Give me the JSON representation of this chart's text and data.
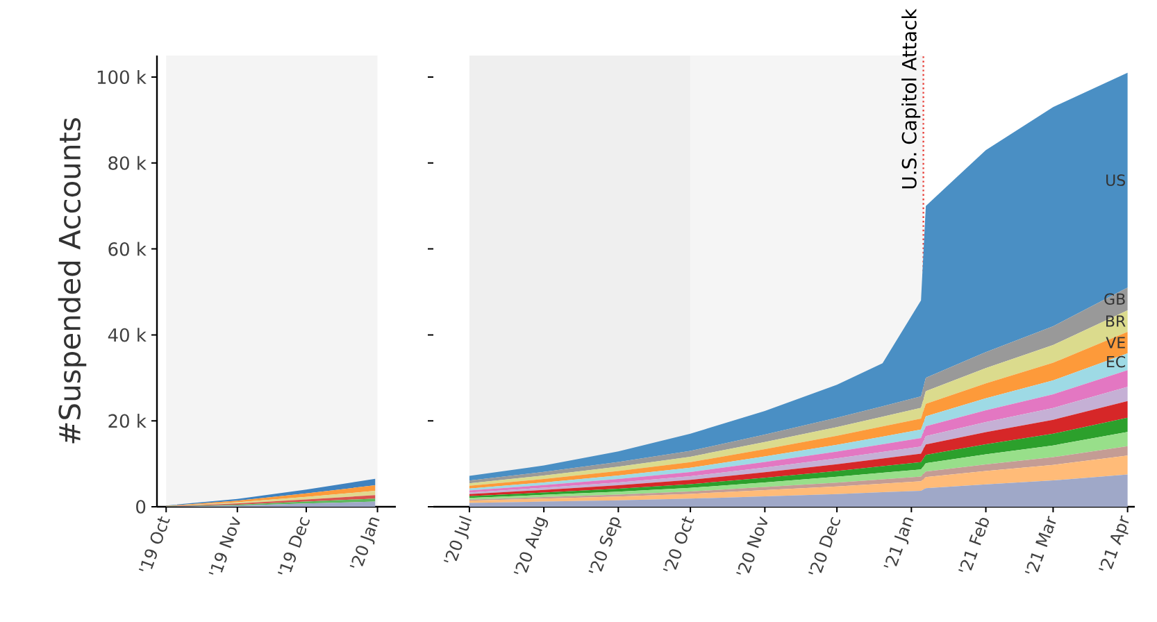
{
  "chart_data": [
    {
      "type": "area",
      "stacked": true,
      "ylabel": "#Suspended Accounts",
      "x": [
        "2019-10-01",
        "2019-11-01",
        "2019-12-01",
        "2019-12-31"
      ],
      "xlim": [
        "2019-09-27",
        "2020-01-09"
      ],
      "ylim": [
        0,
        105000
      ],
      "xticks": [
        {
          "value": "2019-10-01",
          "label": "'19 Oct"
        },
        {
          "value": "2019-11-01",
          "label": "'19 Nov"
        },
        {
          "value": "2019-12-01",
          "label": "'19 Dec"
        },
        {
          "value": "2020-01-01",
          "label": "'20 Jan"
        }
      ],
      "yticks": [
        0,
        {
          "value": 20000,
          "label": "20 k"
        },
        {
          "value": 40000,
          "label": "40 k"
        },
        {
          "value": 60000,
          "label": "60 k"
        },
        {
          "value": 80000,
          "label": "80 k"
        },
        {
          "value": 100000,
          "label": "100 k"
        }
      ],
      "bands": [
        {
          "axis": "x",
          "from": "2019-10-01",
          "to": "2020-01-01",
          "color": "#f4f4f4"
        }
      ],
      "series": [
        {
          "color": "#9fa8c8",
          "values": [
            50,
            300,
            750,
            1200
          ]
        },
        {
          "color": "#5cb85c",
          "values": [
            30,
            200,
            450,
            700
          ]
        },
        {
          "color": "#d9534f",
          "values": [
            30,
            250,
            500,
            800
          ]
        },
        {
          "color": "#e0d890",
          "values": [
            40,
            300,
            600,
            1000
          ]
        },
        {
          "color": "#fd9a3a",
          "values": [
            50,
            350,
            800,
            1300
          ]
        },
        {
          "color": "#3f82bf",
          "values": [
            100,
            400,
            900,
            1500
          ]
        }
      ]
    },
    {
      "type": "area",
      "stacked": true,
      "tick_labels": "x",
      "x": [
        "2020-07-01",
        "2020-08-01",
        "2020-09-01",
        "2020-10-01",
        "2020-11-01",
        "2020-12-01",
        "2020-12-20",
        "2021-01-05",
        "2021-01-07",
        "2021-02-01",
        "2021-03-01",
        "2021-04-01"
      ],
      "xlim": [
        "2020-06-16",
        "2021-04-04"
      ],
      "ylim": [
        0,
        105000
      ],
      "yticks": [
        {
          "value": 0,
          "label": null
        },
        {
          "value": 20000,
          "label": null
        },
        {
          "value": 40000,
          "label": null
        },
        {
          "value": 60000,
          "label": null
        },
        {
          "value": 80000,
          "label": null
        },
        {
          "value": 100000,
          "label": null
        }
      ],
      "xticks": [
        {
          "value": "2020-07-01",
          "label": "'20 Jul"
        },
        {
          "value": "2020-08-01",
          "label": "'20 Aug"
        },
        {
          "value": "2020-09-01",
          "label": "'20 Sep"
        },
        {
          "value": "2020-10-01",
          "label": "'20 Oct"
        },
        {
          "value": "2020-11-01",
          "label": "'20 Nov"
        },
        {
          "value": "2020-12-01",
          "label": "'20 Dec"
        },
        {
          "value": "2021-01-01",
          "label": "'21 Jan"
        },
        {
          "value": "2021-02-01",
          "label": "'21 Feb"
        },
        {
          "value": "2021-03-01",
          "label": "'21 Mar"
        },
        {
          "value": "2021-04-01",
          "label": "'21 Apr"
        }
      ],
      "bands": [
        {
          "axis": "x",
          "from": "2020-07-01",
          "to": "2020-10-01",
          "color": "#efefef"
        },
        {
          "axis": "x",
          "from": "2020-10-01",
          "to": "2021-01-06",
          "color": "#f5f5f5"
        }
      ],
      "ref_lines": [
        {
          "axis": "x",
          "value": "2021-01-06",
          "label": "U.S. Capitol Attack",
          "color": "#e8423c",
          "line_style": "dotted"
        }
      ],
      "series": [
        {
          "color": "#9fa8c8",
          "values": [
            880,
            1200,
            1500,
            1880,
            2430,
            2960,
            3380,
            3710,
            4320,
            5200,
            6130,
            7500
          ]
        },
        {
          "color": "#ffbb78",
          "values": [
            520,
            700,
            890,
            1120,
            1440,
            1780,
            2010,
            2210,
            2580,
            3100,
            3610,
            4400
          ]
        },
        {
          "color": "#c49c94",
          "values": [
            260,
            350,
            450,
            560,
            720,
            890,
            1010,
            1110,
            1290,
            1550,
            1810,
            2200
          ]
        },
        {
          "color": "#98df8a",
          "values": [
            400,
            520,
            670,
            840,
            1080,
            1340,
            1510,
            1660,
            1940,
            2330,
            2720,
            3300
          ]
        },
        {
          "color": "#2ca02c",
          "values": [
            400,
            530,
            680,
            850,
            1090,
            1350,
            1520,
            1670,
            1950,
            2340,
            2730,
            3300
          ]
        },
        {
          "color": "#d62728",
          "values": [
            470,
            620,
            800,
            1000,
            1290,
            1590,
            1800,
            2000,
            2400,
            2850,
            3250,
            3900
          ]
        },
        {
          "color": "#c5b0d5",
          "values": [
            400,
            530,
            680,
            850,
            1090,
            1350,
            1520,
            1670,
            1950,
            2340,
            2730,
            3300
          ]
        },
        {
          "color": "#e377c2",
          "values": [
            450,
            600,
            780,
            980,
            1270,
            1570,
            1780,
            1950,
            2300,
            2750,
            3200,
            3900
          ]
        },
        {
          "name": "EC",
          "color": "#9edae5",
          "values": [
            470,
            620,
            800,
            1000,
            1290,
            1590,
            1800,
            1980,
            2310,
            2770,
            3230,
            3900
          ]
        },
        {
          "name": "VE",
          "color": "#fd9a3a",
          "values": [
            620,
            800,
            1050,
            1300,
            1700,
            2100,
            2350,
            2550,
            2900,
            3500,
            4100,
            5000
          ]
        },
        {
          "name": "BR",
          "color": "#dbdb8d",
          "values": [
            600,
            790,
            1020,
            1270,
            1650,
            2030,
            2290,
            2520,
            2940,
            3530,
            4120,
            5000
          ]
        },
        {
          "name": "GB",
          "color": "#999999",
          "values": [
            630,
            840,
            1080,
            1350,
            1750,
            2150,
            2430,
            2670,
            3120,
            3740,
            4370,
            5300
          ]
        },
        {
          "name": "US",
          "color": "#4a8fc4",
          "values": [
            1100,
            1500,
            2500,
            4000,
            5500,
            7700,
            10000,
            22300,
            40000,
            47000,
            51000,
            50000
          ]
        }
      ]
    }
  ]
}
